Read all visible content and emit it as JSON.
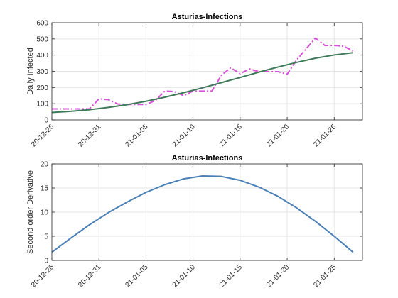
{
  "chart_data": [
    {
      "type": "line",
      "title": "Asturias-Infections",
      "xlabel": "",
      "ylabel": "Daily Infected",
      "x_ticks": [
        "20-12-26",
        "20-12-31",
        "21-01-05",
        "21-01-10",
        "21-01-15",
        "21-01-20",
        "21-01-25"
      ],
      "x_range": [
        "2020-12-26",
        "2021-01-28"
      ],
      "ylim": [
        0,
        600
      ],
      "y_ticks": [
        0,
        100,
        200,
        300,
        400,
        500,
        600
      ],
      "grid": true,
      "series": [
        {
          "style": "dash-dot",
          "color": "#d94fd9",
          "points": [
            [
              "2020-12-26",
              68
            ],
            [
              "2020-12-27",
              68
            ],
            [
              "2020-12-28",
              68
            ],
            [
              "2020-12-29",
              68
            ],
            [
              "2020-12-30",
              68
            ],
            [
              "2020-12-31",
              130
            ],
            [
              "2021-01-01",
              125
            ],
            [
              "2021-01-02",
              98
            ],
            [
              "2021-01-03",
              95
            ],
            [
              "2021-01-04",
              95
            ],
            [
              "2021-01-05",
              95
            ],
            [
              "2021-01-06",
              120
            ],
            [
              "2021-01-07",
              178
            ],
            [
              "2021-01-08",
              175
            ],
            [
              "2021-01-09",
              150
            ],
            [
              "2021-01-10",
              178
            ],
            [
              "2021-01-11",
              178
            ],
            [
              "2021-01-12",
              178
            ],
            [
              "2021-01-13",
              275
            ],
            [
              "2021-01-14",
              322
            ],
            [
              "2021-01-15",
              285
            ],
            [
              "2021-01-16",
              315
            ],
            [
              "2021-01-17",
              298
            ],
            [
              "2021-01-18",
              298
            ],
            [
              "2021-01-19",
              298
            ],
            [
              "2021-01-20",
              282
            ],
            [
              "2021-01-21",
              370
            ],
            [
              "2021-01-22",
              438
            ],
            [
              "2021-01-23",
              505
            ],
            [
              "2021-01-24",
              460
            ],
            [
              "2021-01-25",
              460
            ],
            [
              "2021-01-26",
              455
            ],
            [
              "2021-01-27",
              425
            ]
          ]
        },
        {
          "style": "solid",
          "color": "#3e7a5a",
          "points": [
            [
              "2020-12-26",
              46
            ],
            [
              "2020-12-28",
              53
            ],
            [
              "2020-12-30",
              63
            ],
            [
              "2021-01-01",
              77
            ],
            [
              "2021-01-03",
              94
            ],
            [
              "2021-01-05",
              115
            ],
            [
              "2021-01-07",
              140
            ],
            [
              "2021-01-09",
              168
            ],
            [
              "2021-01-11",
              198
            ],
            [
              "2021-01-13",
              230
            ],
            [
              "2021-01-15",
              262
            ],
            [
              "2021-01-17",
              295
            ],
            [
              "2021-01-19",
              326
            ],
            [
              "2021-01-21",
              355
            ],
            [
              "2021-01-23",
              381
            ],
            [
              "2021-01-25",
              401
            ],
            [
              "2021-01-27",
              415
            ]
          ]
        }
      ]
    },
    {
      "type": "line",
      "title": "Asturias-Infections",
      "xlabel": "",
      "ylabel": "Second order Derivative",
      "x_ticks": [
        "20-12-26",
        "20-12-31",
        "21-01-05",
        "21-01-10",
        "21-01-15",
        "21-01-20",
        "21-01-25"
      ],
      "x_range": [
        "2020-12-26",
        "2021-01-28"
      ],
      "ylim": [
        0,
        20
      ],
      "y_ticks": [
        0,
        5,
        10,
        15,
        20
      ],
      "grid": true,
      "series": [
        {
          "style": "solid",
          "color": "#4a7fb5",
          "points": [
            [
              "2020-12-26",
              1.7
            ],
            [
              "2020-12-28",
              4.6
            ],
            [
              "2020-12-30",
              7.4
            ],
            [
              "2021-01-01",
              9.9
            ],
            [
              "2021-01-03",
              12.1
            ],
            [
              "2021-01-05",
              14.1
            ],
            [
              "2021-01-07",
              15.7
            ],
            [
              "2021-01-09",
              16.9
            ],
            [
              "2021-01-11",
              17.5
            ],
            [
              "2021-01-13",
              17.4
            ],
            [
              "2021-01-15",
              16.6
            ],
            [
              "2021-01-17",
              15.2
            ],
            [
              "2021-01-19",
              13.3
            ],
            [
              "2021-01-21",
              10.9
            ],
            [
              "2021-01-23",
              8.1
            ],
            [
              "2021-01-25",
              5.0
            ],
            [
              "2021-01-27",
              1.7
            ]
          ]
        }
      ]
    }
  ]
}
